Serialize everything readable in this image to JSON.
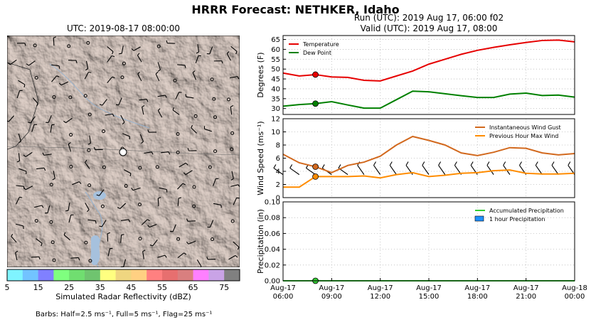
{
  "title": "HRRR Forecast: NETHKER, Idaho",
  "map": {
    "time_label": "UTC: 2019-08-17 08:00:00",
    "colorbar": {
      "label": "Simulated Radar Reflectivity (dBZ)",
      "ticks": [
        "5",
        "15",
        "25",
        "35",
        "45",
        "55",
        "65",
        "75"
      ],
      "colors": [
        "#7ff4ff",
        "#72c3ff",
        "#8080ff",
        "#7fff7f",
        "#70de70",
        "#6fc46f",
        "#ffff80",
        "#efd680",
        "#ffd082",
        "#ff8080",
        "#e76f6f",
        "#d97f7f",
        "#ff80ff",
        "#c9a3e6",
        "#808080"
      ]
    },
    "barbs_note": "Barbs: Half=2.5 ms⁻¹, Full=5 ms⁻¹, Flag=25 ms⁻¹"
  },
  "run_label": "Run (UTC): 2019 Aug 17, 06:00 f02",
  "valid_label": "Valid (UTC): 2019 Aug 17, 08:00",
  "chart_data": [
    {
      "type": "line",
      "id": "temperature-panel",
      "ylabel": "Degrees (F)",
      "ylim": [
        27,
        67
      ],
      "yticks": [
        30,
        35,
        40,
        45,
        50,
        55,
        60,
        65
      ],
      "x": [
        0,
        1,
        2,
        3,
        4,
        5,
        6,
        7,
        8,
        9,
        10,
        11,
        12,
        13,
        14,
        15,
        16,
        17,
        18
      ],
      "grid": true,
      "legend": "top-left",
      "series": [
        {
          "name": "Temperature",
          "color": "#e60000",
          "values": [
            48,
            46.5,
            47.2,
            46,
            45.8,
            44.3,
            44,
            46.5,
            49,
            52.5,
            55,
            57.5,
            59.5,
            61,
            62.3,
            63.5,
            64.5,
            64.7,
            63.8
          ]
        },
        {
          "name": "Dew Point",
          "color": "#008000",
          "values": [
            31.2,
            32,
            32.5,
            33.5,
            31.8,
            30.2,
            30.2,
            34.5,
            38.8,
            38.5,
            37.5,
            36.5,
            35.6,
            35.6,
            37.3,
            37.8,
            36.6,
            36.8,
            35.8
          ]
        }
      ],
      "marker_index": 2
    },
    {
      "type": "line",
      "id": "wind-panel",
      "ylabel": "Wind Speed (ms⁻¹)",
      "ylim": [
        0,
        12
      ],
      "yticks": [
        0,
        2,
        4,
        6,
        8,
        10,
        12
      ],
      "x": [
        0,
        1,
        2,
        3,
        4,
        5,
        6,
        7,
        8,
        9,
        10,
        11,
        12,
        13,
        14,
        15,
        16,
        17,
        18
      ],
      "grid": true,
      "legend": "top-right",
      "series": [
        {
          "name": "Instantaneous Wind Gust",
          "color": "#d2691e",
          "values": [
            6.6,
            5.3,
            4.7,
            3.8,
            4.9,
            5.4,
            6.3,
            8,
            9.3,
            8.7,
            8,
            6.8,
            6.4,
            6.9,
            7.6,
            7.5,
            6.8,
            6.5,
            6.7
          ]
        },
        {
          "name": "Previous Hour Max Wind",
          "color": "#ff8c00",
          "values": [
            1.6,
            1.6,
            3.2,
            3.2,
            3.2,
            3.3,
            3.0,
            3.5,
            3.8,
            3.2,
            3.4,
            3.7,
            3.8,
            4.1,
            4.2,
            3.7,
            3.6,
            3.6,
            3.7
          ]
        }
      ],
      "marker_index": 2
    },
    {
      "type": "line",
      "id": "precip-panel",
      "ylabel": "Precipitation (in)",
      "ylim": [
        0,
        0.1
      ],
      "yticks": [
        "0.00",
        "0.02",
        "0.04",
        "0.06",
        "0.08",
        "0.10"
      ],
      "x": [
        0,
        1,
        2,
        3,
        4,
        5,
        6,
        7,
        8,
        9,
        10,
        11,
        12,
        13,
        14,
        15,
        16,
        17,
        18
      ],
      "grid": true,
      "legend": "top-right",
      "series": [
        {
          "name": "Accumulated Precipitation",
          "color": "#33cc33",
          "values": [
            0,
            0,
            0,
            0,
            0,
            0,
            0,
            0,
            0,
            0,
            0,
            0,
            0,
            0,
            0,
            0,
            0,
            0,
            0
          ]
        },
        {
          "name": "1 hour Precipitation",
          "color": "#1e90ff",
          "values": [
            0,
            0,
            0,
            0,
            0,
            0,
            0,
            0,
            0,
            0,
            0,
            0,
            0,
            0,
            0,
            0,
            0,
            0,
            0
          ]
        }
      ],
      "xticks": [
        {
          "i": 0,
          "line1": "Aug-17",
          "line2": "06:00"
        },
        {
          "i": 3,
          "line1": "Aug-17",
          "line2": "09:00"
        },
        {
          "i": 6,
          "line1": "Aug-17",
          "line2": "12:00"
        },
        {
          "i": 9,
          "line1": "Aug-17",
          "line2": "15:00"
        },
        {
          "i": 12,
          "line1": "Aug-17",
          "line2": "18:00"
        },
        {
          "i": 15,
          "line1": "Aug-17",
          "line2": "21:00"
        },
        {
          "i": 18,
          "line1": "Aug-18",
          "line2": "00:00"
        }
      ],
      "marker_index": 2
    }
  ]
}
